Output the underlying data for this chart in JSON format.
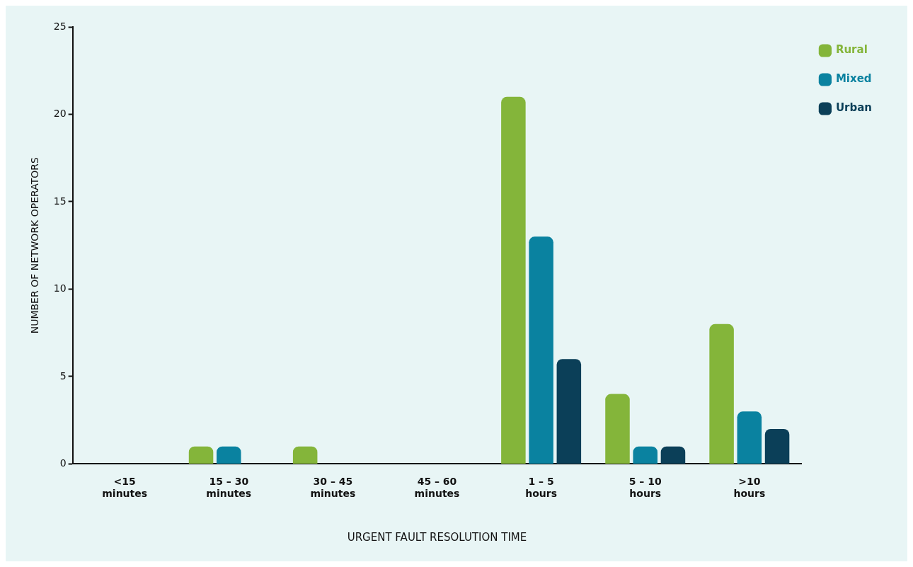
{
  "chart_data": {
    "type": "bar",
    "xlabel": "URGENT FAULT RESOLUTION TIME",
    "ylabel": "NUMBER OF NETWORK OPERATORS",
    "categories": [
      "<15 minutes",
      "15 – 30 minutes",
      "30 – 45 minutes",
      "45 – 60 minutes",
      "1 – 5 hours",
      "5 – 10 hours",
      ">10 hours"
    ],
    "series": [
      {
        "name": "Rural",
        "color": "#84b53a",
        "values": [
          0,
          1,
          1,
          0,
          21,
          4,
          8
        ]
      },
      {
        "name": "Mixed",
        "color": "#0a82a0",
        "values": [
          0,
          1,
          0,
          0,
          13,
          1,
          3
        ]
      },
      {
        "name": "Urban",
        "color": "#0b3f58",
        "values": [
          0,
          0,
          0,
          0,
          6,
          1,
          2
        ]
      }
    ],
    "ylim": [
      0,
      25
    ],
    "yticks": [
      0,
      5,
      10,
      15,
      20,
      25
    ],
    "grid": false,
    "legend": "top right"
  }
}
